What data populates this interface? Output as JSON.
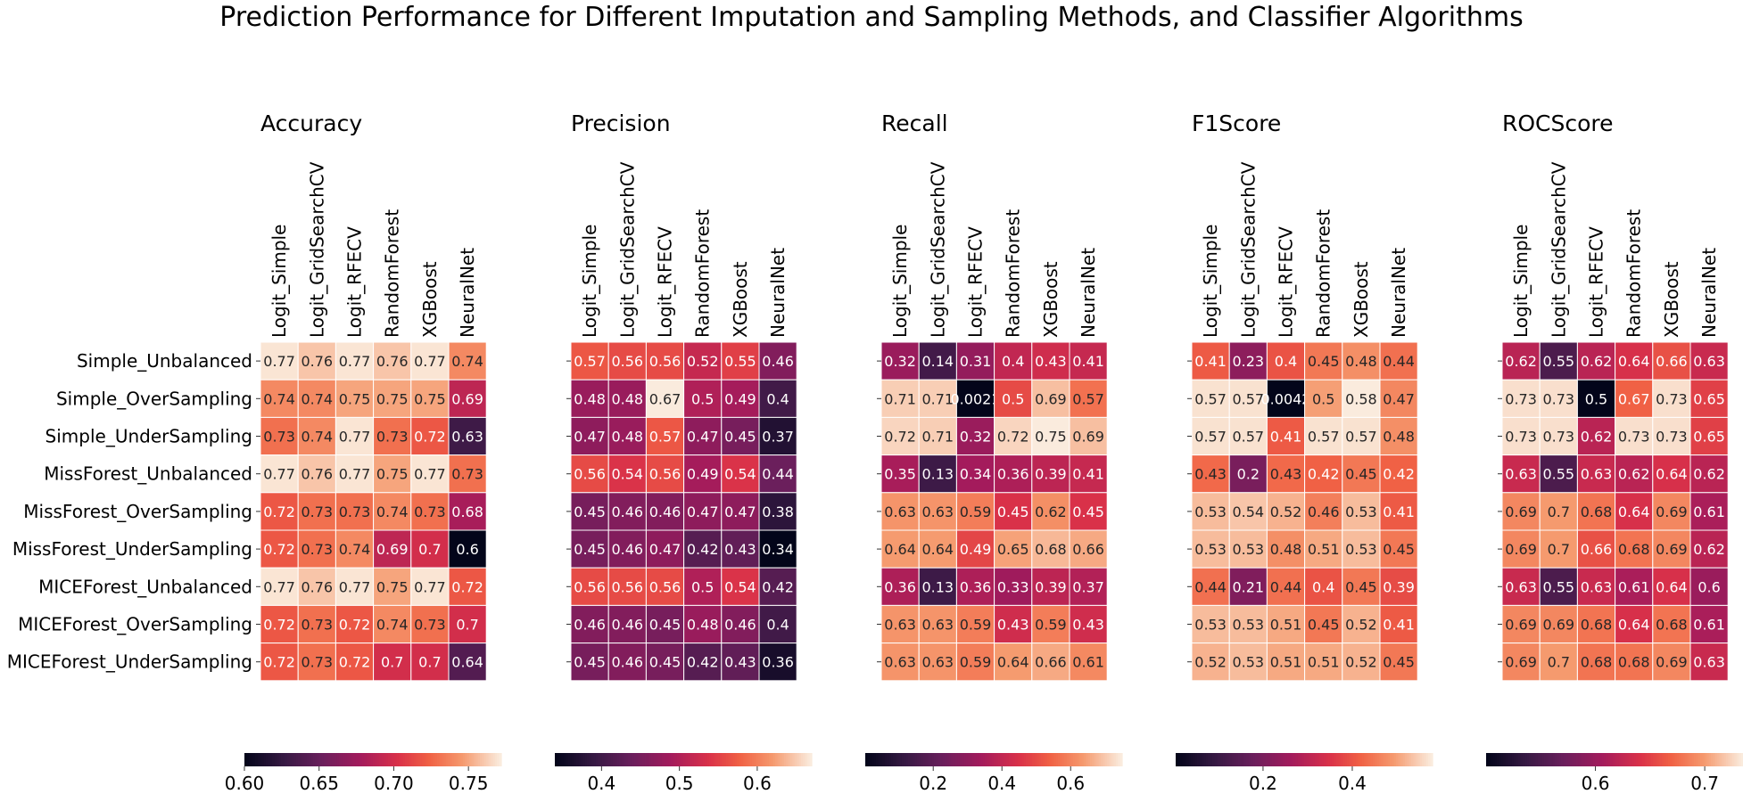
{
  "suptitle": "Prediction Performance for Different Imputation and Sampling Methods, and Classifier Algorithms",
  "chart_data": [
    {
      "type": "heatmap",
      "title": "Accuracy",
      "columns": [
        "Logit_Simple",
        "Logit_GridSearchCV",
        "Logit_RFECV",
        "RandomForest",
        "XGBoost",
        "NeuralNet"
      ],
      "rows": [
        "Simple_Unbalanced",
        "Simple_OverSampling",
        "Simple_UnderSampling",
        "MissForest_Unbalanced",
        "MissForest_OverSampling",
        "MissForest_UnderSampling",
        "MICEForest_Unbalanced",
        "MICEForest_OverSampling",
        "MICEForest_UnderSampling"
      ],
      "labels": [
        [
          "0.77",
          "0.76",
          "0.77",
          "0.76",
          "0.77",
          "0.74"
        ],
        [
          "0.74",
          "0.74",
          "0.75",
          "0.75",
          "0.75",
          "0.69"
        ],
        [
          "0.73",
          "0.74",
          "0.77",
          "0.73",
          "0.72",
          "0.63"
        ],
        [
          "0.77",
          "0.76",
          "0.77",
          "0.75",
          "0.77",
          "0.73"
        ],
        [
          "0.72",
          "0.73",
          "0.73",
          "0.74",
          "0.73",
          "0.68"
        ],
        [
          "0.72",
          "0.73",
          "0.74",
          "0.69",
          "0.7",
          "0.6"
        ],
        [
          "0.77",
          "0.76",
          "0.77",
          "0.75",
          "0.77",
          "0.72"
        ],
        [
          "0.72",
          "0.73",
          "0.72",
          "0.74",
          "0.73",
          "0.7"
        ],
        [
          "0.72",
          "0.73",
          "0.72",
          "0.7",
          "0.7",
          "0.64"
        ]
      ],
      "colorbar": {
        "min": 0.6,
        "max": 0.772,
        "ticks": [
          "0.60",
          "0.65",
          "0.70",
          "0.75"
        ]
      },
      "colormap": "rocket"
    },
    {
      "type": "heatmap",
      "title": "Precision",
      "columns": [
        "Logit_Simple",
        "Logit_GridSearchCV",
        "Logit_RFECV",
        "RandomForest",
        "XGBoost",
        "NeuralNet"
      ],
      "rows": [
        "Simple_Unbalanced",
        "Simple_OverSampling",
        "Simple_UnderSampling",
        "MissForest_Unbalanced",
        "MissForest_OverSampling",
        "MissForest_UnderSampling",
        "MICEForest_Unbalanced",
        "MICEForest_OverSampling",
        "MICEForest_UnderSampling"
      ],
      "labels": [
        [
          "0.57",
          "0.56",
          "0.56",
          "0.52",
          "0.55",
          "0.46"
        ],
        [
          "0.48",
          "0.48",
          "0.67",
          "0.5",
          "0.49",
          "0.4"
        ],
        [
          "0.47",
          "0.48",
          "0.57",
          "0.47",
          "0.45",
          "0.37"
        ],
        [
          "0.56",
          "0.54",
          "0.56",
          "0.49",
          "0.54",
          "0.44"
        ],
        [
          "0.45",
          "0.46",
          "0.46",
          "0.47",
          "0.47",
          "0.38"
        ],
        [
          "0.45",
          "0.46",
          "0.47",
          "0.42",
          "0.43",
          "0.34"
        ],
        [
          "0.56",
          "0.56",
          "0.56",
          "0.5",
          "0.54",
          "0.42"
        ],
        [
          "0.46",
          "0.46",
          "0.45",
          "0.48",
          "0.46",
          "0.4"
        ],
        [
          "0.45",
          "0.46",
          "0.45",
          "0.42",
          "0.43",
          "0.36"
        ]
      ],
      "colorbar": {
        "min": 0.34,
        "max": 0.67,
        "ticks": [
          "0.4",
          "0.5",
          "0.6"
        ]
      },
      "colormap": "rocket"
    },
    {
      "type": "heatmap",
      "title": "Recall",
      "columns": [
        "Logit_Simple",
        "Logit_GridSearchCV",
        "Logit_RFECV",
        "RandomForest",
        "XGBoost",
        "NeuralNet"
      ],
      "rows": [
        "Simple_Unbalanced",
        "Simple_OverSampling",
        "Simple_UnderSampling",
        "MissForest_Unbalanced",
        "MissForest_OverSampling",
        "MissForest_UnderSampling",
        "MICEForest_Unbalanced",
        "MICEForest_OverSampling",
        "MICEForest_UnderSampling"
      ],
      "labels": [
        [
          "0.32",
          "0.14",
          "0.31",
          "0.4",
          "0.43",
          "0.41"
        ],
        [
          "0.71",
          "0.71",
          "0.0021",
          "0.5",
          "0.69",
          "0.57"
        ],
        [
          "0.72",
          "0.71",
          "0.32",
          "0.72",
          "0.75",
          "0.69"
        ],
        [
          "0.35",
          "0.13",
          "0.34",
          "0.36",
          "0.39",
          "0.41"
        ],
        [
          "0.63",
          "0.63",
          "0.59",
          "0.45",
          "0.62",
          "0.45"
        ],
        [
          "0.64",
          "0.64",
          "0.49",
          "0.65",
          "0.68",
          "0.66"
        ],
        [
          "0.36",
          "0.13",
          "0.36",
          "0.33",
          "0.39",
          "0.37"
        ],
        [
          "0.63",
          "0.63",
          "0.59",
          "0.43",
          "0.59",
          "0.43"
        ],
        [
          "0.63",
          "0.63",
          "0.59",
          "0.64",
          "0.66",
          "0.61"
        ]
      ],
      "colorbar": {
        "min": 0.0021,
        "max": 0.75,
        "ticks": [
          "0.2",
          "0.4",
          "0.6"
        ]
      },
      "colormap": "rocket"
    },
    {
      "type": "heatmap",
      "title": "F1Score",
      "columns": [
        "Logit_Simple",
        "Logit_GridSearchCV",
        "Logit_RFECV",
        "RandomForest",
        "XGBoost",
        "NeuralNet"
      ],
      "rows": [
        "Simple_Unbalanced",
        "Simple_OverSampling",
        "Simple_UnderSampling",
        "MissForest_Unbalanced",
        "MissForest_OverSampling",
        "MissForest_UnderSampling",
        "MICEForest_Unbalanced",
        "MICEForest_OverSampling",
        "MICEForest_UnderSampling"
      ],
      "labels": [
        [
          "0.41",
          "0.23",
          "0.4",
          "0.45",
          "0.48",
          "0.44"
        ],
        [
          "0.57",
          "0.57",
          "0.0042",
          "0.5",
          "0.58",
          "0.47"
        ],
        [
          "0.57",
          "0.57",
          "0.41",
          "0.57",
          "0.57",
          "0.48"
        ],
        [
          "0.43",
          "0.2",
          "0.43",
          "0.42",
          "0.45",
          "0.42"
        ],
        [
          "0.53",
          "0.54",
          "0.52",
          "0.46",
          "0.53",
          "0.41"
        ],
        [
          "0.53",
          "0.53",
          "0.48",
          "0.51",
          "0.53",
          "0.45"
        ],
        [
          "0.44",
          "0.21",
          "0.44",
          "0.4",
          "0.45",
          "0.39"
        ],
        [
          "0.53",
          "0.53",
          "0.51",
          "0.45",
          "0.52",
          "0.41"
        ],
        [
          "0.52",
          "0.53",
          "0.51",
          "0.51",
          "0.52",
          "0.45"
        ]
      ],
      "colorbar": {
        "min": 0.0042,
        "max": 0.58,
        "ticks": [
          "0.2",
          "0.4"
        ]
      },
      "colormap": "rocket"
    },
    {
      "type": "heatmap",
      "title": "ROCScore",
      "columns": [
        "Logit_Simple",
        "Logit_GridSearchCV",
        "Logit_RFECV",
        "RandomForest",
        "XGBoost",
        "NeuralNet"
      ],
      "rows": [
        "Simple_Unbalanced",
        "Simple_OverSampling",
        "Simple_UnderSampling",
        "MissForest_Unbalanced",
        "MissForest_OverSampling",
        "MissForest_UnderSampling",
        "MICEForest_Unbalanced",
        "MICEForest_OverSampling",
        "MICEForest_UnderSampling"
      ],
      "labels": [
        [
          "0.62",
          "0.55",
          "0.62",
          "0.64",
          "0.66",
          "0.63"
        ],
        [
          "0.73",
          "0.73",
          "0.5",
          "0.67",
          "0.73",
          "0.65"
        ],
        [
          "0.73",
          "0.73",
          "0.62",
          "0.73",
          "0.73",
          "0.65"
        ],
        [
          "0.63",
          "0.55",
          "0.63",
          "0.62",
          "0.64",
          "0.62"
        ],
        [
          "0.69",
          "0.7",
          "0.68",
          "0.64",
          "0.69",
          "0.61"
        ],
        [
          "0.69",
          "0.7",
          "0.66",
          "0.68",
          "0.69",
          "0.62"
        ],
        [
          "0.63",
          "0.55",
          "0.63",
          "0.61",
          "0.64",
          "0.6"
        ],
        [
          "0.69",
          "0.69",
          "0.68",
          "0.64",
          "0.68",
          "0.61"
        ],
        [
          "0.69",
          "0.7",
          "0.68",
          "0.68",
          "0.69",
          "0.63"
        ]
      ],
      "colorbar": {
        "min": 0.5,
        "max": 0.735,
        "ticks": [
          "0.6",
          "0.7"
        ]
      },
      "colormap": "rocket"
    }
  ]
}
